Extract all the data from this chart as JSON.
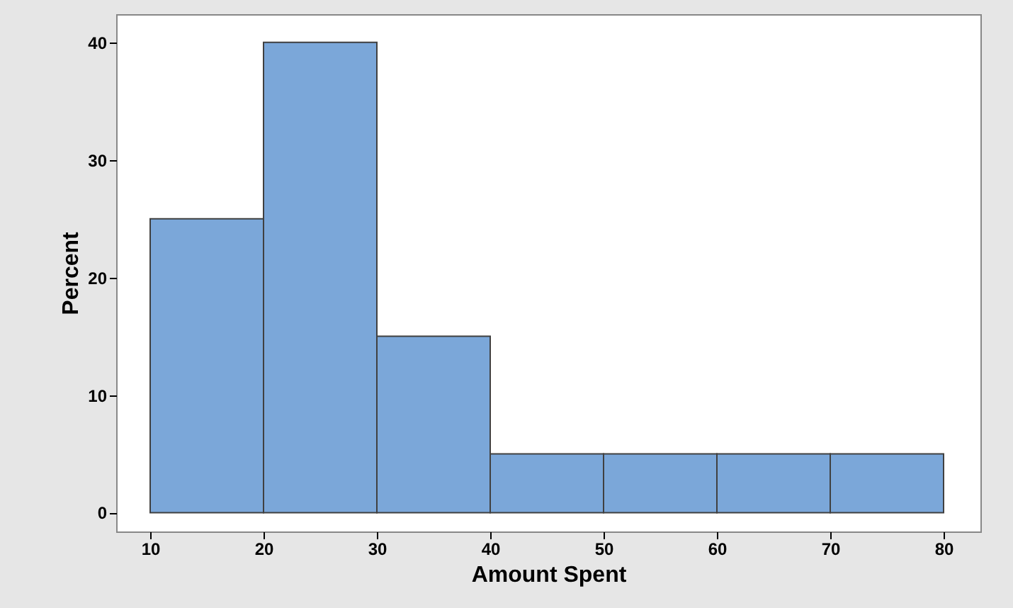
{
  "chart_data": {
    "type": "histogram",
    "xlabel": "Amount Spent",
    "ylabel": "Percent",
    "bins": [
      10,
      20,
      30,
      40,
      50,
      60,
      70,
      80
    ],
    "values": [
      25,
      40,
      15,
      5,
      5,
      5,
      5
    ],
    "color": "#7ba7d9",
    "xlim": [
      7,
      83.25
    ],
    "ylim": [
      -1.6,
      42.4
    ],
    "xticks": [
      10,
      20,
      30,
      40,
      50,
      60,
      70,
      80
    ],
    "yticks": [
      0,
      10,
      20,
      30,
      40
    ],
    "grid": false
  }
}
